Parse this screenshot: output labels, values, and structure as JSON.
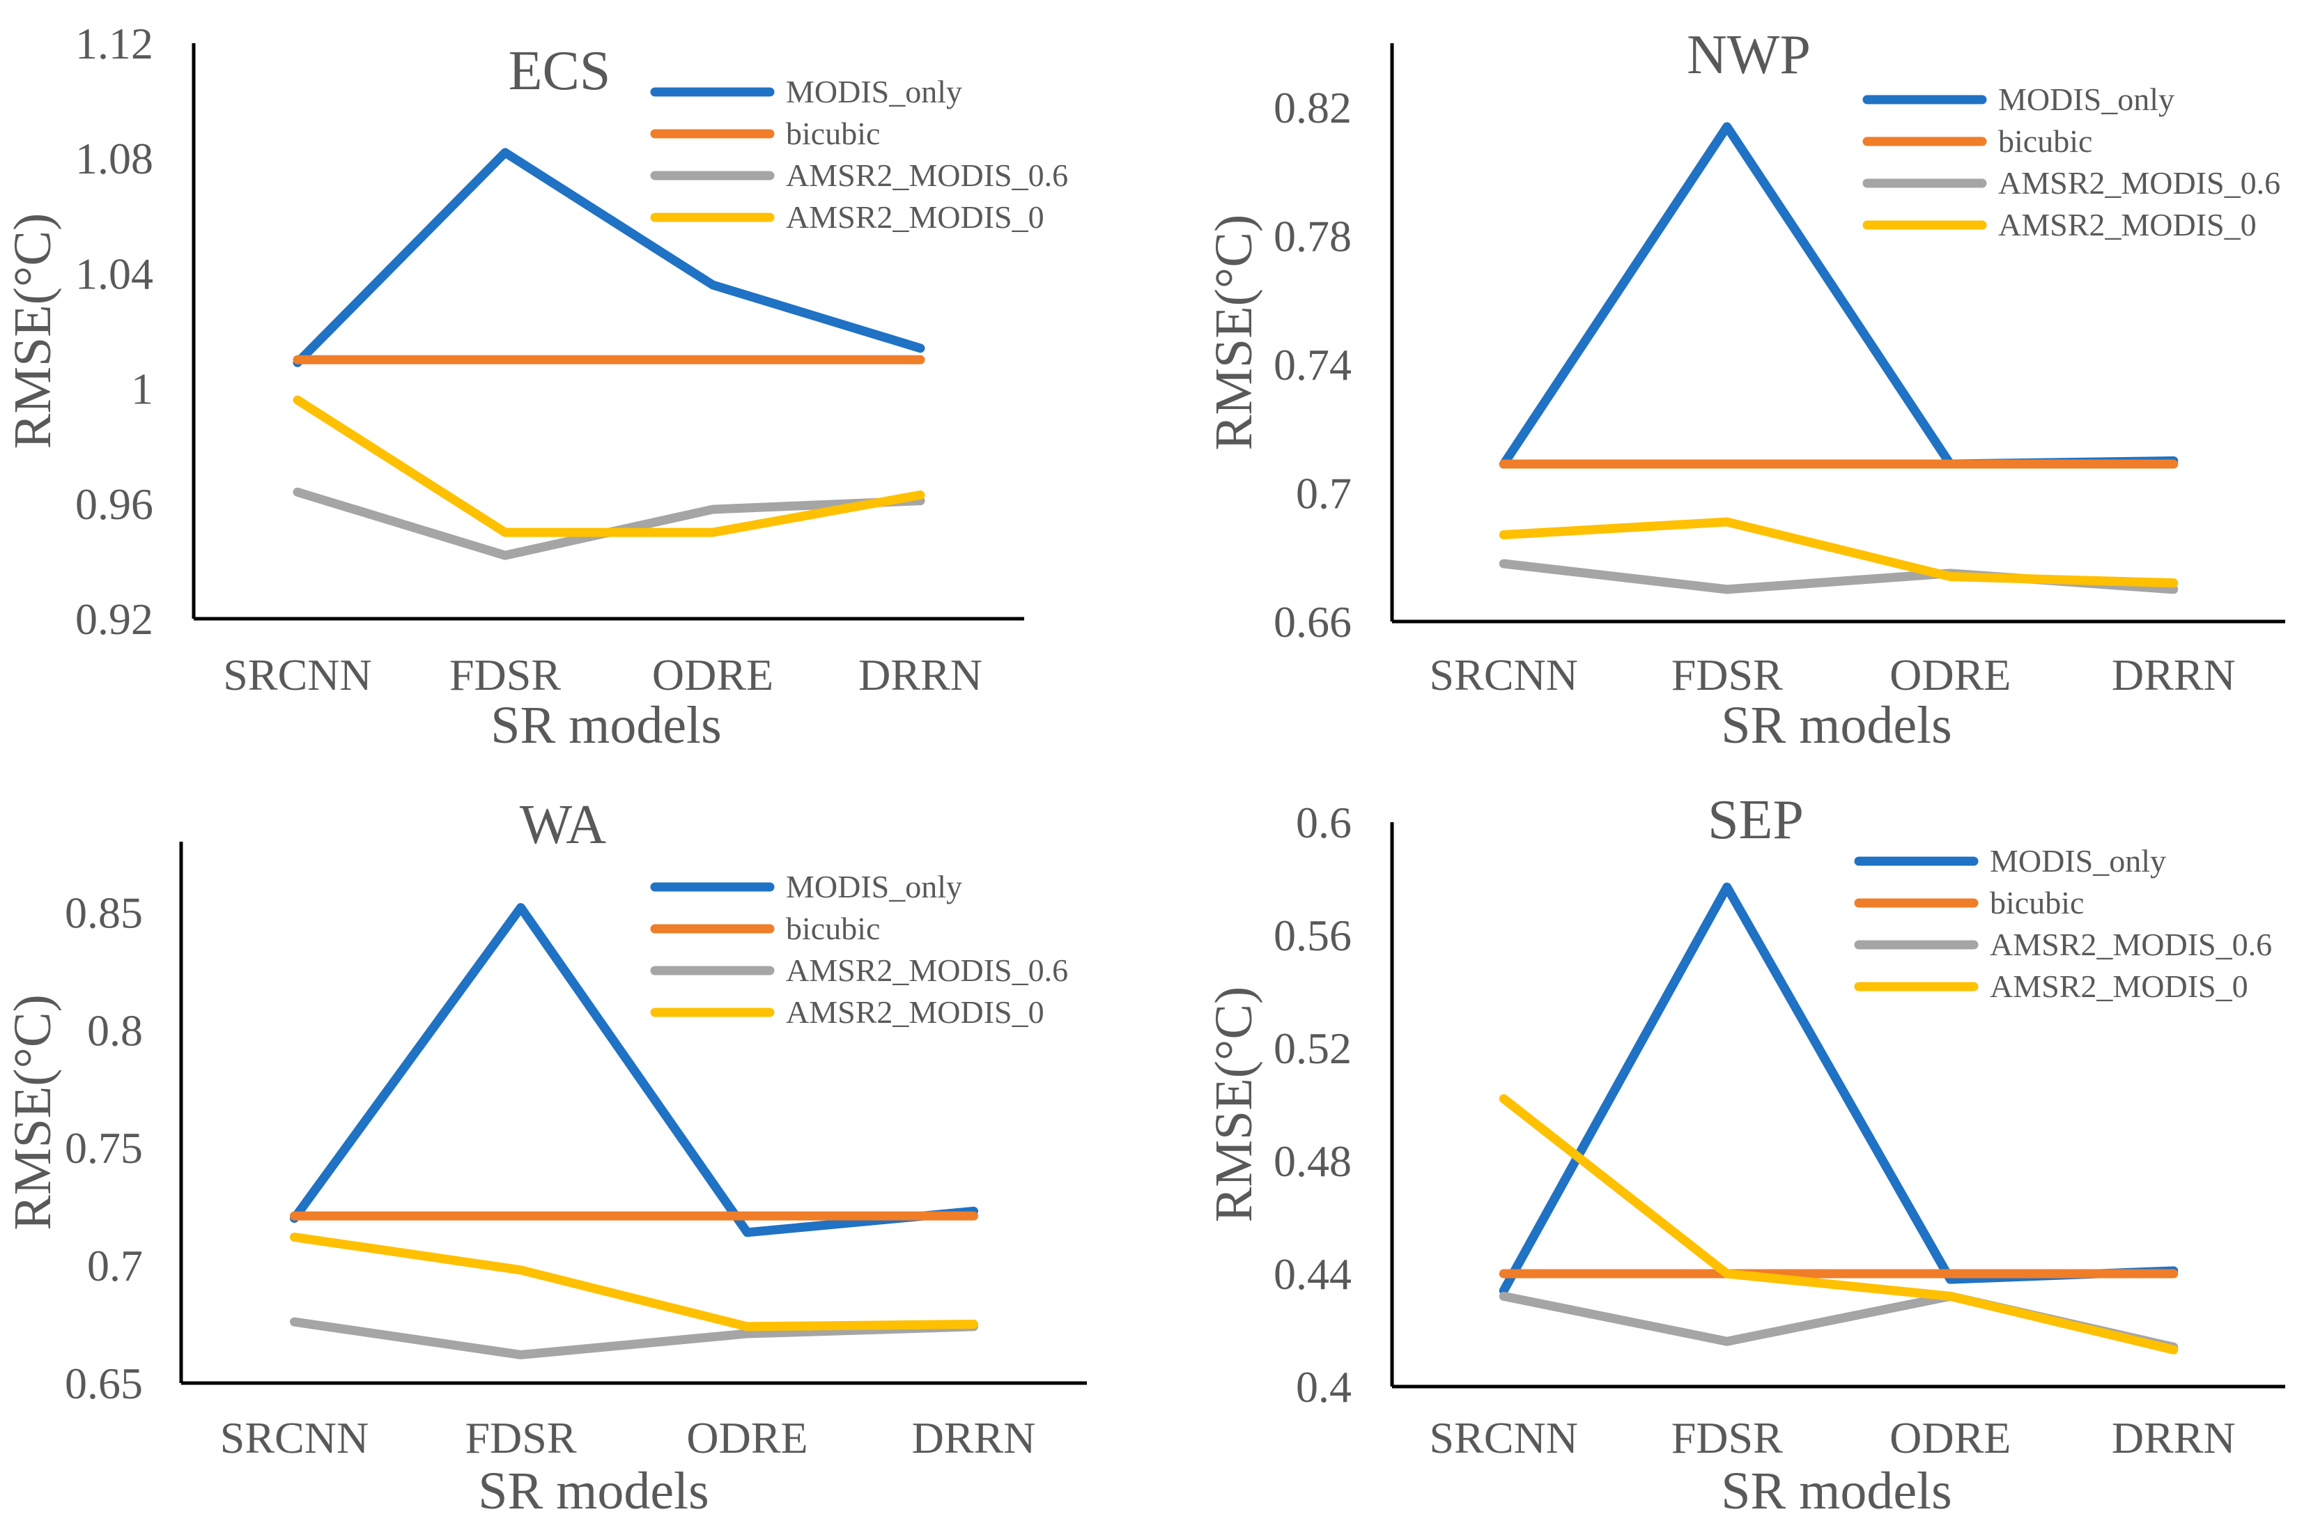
{
  "chart_data": [
    {
      "type": "line",
      "title": "ECS",
      "xlabel": "SR models",
      "ylabel": "RMSE(°C)",
      "categories": [
        "SRCNN",
        "FDSR",
        "ODRE",
        "DRRN"
      ],
      "ylim": [
        0.92,
        1.12
      ],
      "yticks": [
        0.92,
        0.96,
        1,
        1.04,
        1.08,
        1.12
      ],
      "ytick_labels": [
        "0.92",
        "0.96",
        "1",
        "1.04",
        "1.08",
        "1.12"
      ],
      "legend_position": "top-right",
      "series": [
        {
          "name": "MODIS_only",
          "color": "#1f72c4",
          "values": [
            1.009,
            1.082,
            1.036,
            1.014
          ]
        },
        {
          "name": "bicubic",
          "color": "#f07d28",
          "values": [
            1.01,
            1.01,
            1.01,
            1.01
          ]
        },
        {
          "name": "AMSR2_MODIS_0.6",
          "color": "#a5a5a5",
          "values": [
            0.964,
            0.942,
            0.958,
            0.961
          ]
        },
        {
          "name": "AMSR2_MODIS_0",
          "color": "#ffc000",
          "values": [
            0.996,
            0.95,
            0.95,
            0.963
          ]
        }
      ]
    },
    {
      "type": "line",
      "title": "NWP",
      "xlabel": "SR models",
      "ylabel": "RMSE(°C)",
      "categories": [
        "SRCNN",
        "FDSR",
        "ODRE",
        "DRRN"
      ],
      "ylim": [
        0.66,
        0.84
      ],
      "yticks": [
        0.66,
        0.7,
        0.74,
        0.78,
        0.82
      ],
      "ytick_labels": [
        "0.66",
        "0.7",
        "0.74",
        "0.78",
        "0.82"
      ],
      "legend_position": "top-right",
      "series": [
        {
          "name": "MODIS_only",
          "color": "#1f72c4",
          "values": [
            0.709,
            0.814,
            0.709,
            0.71
          ]
        },
        {
          "name": "bicubic",
          "color": "#f07d28",
          "values": [
            0.709,
            0.709,
            0.709,
            0.709
          ]
        },
        {
          "name": "AMSR2_MODIS_0.6",
          "color": "#a5a5a5",
          "values": [
            0.678,
            0.67,
            0.675,
            0.67
          ]
        },
        {
          "name": "AMSR2_MODIS_0",
          "color": "#ffc000",
          "values": [
            0.687,
            0.691,
            0.674,
            0.672
          ]
        }
      ]
    },
    {
      "type": "line",
      "title": "WA",
      "xlabel": "SR models",
      "ylabel": "RMSE(°C)",
      "categories": [
        "SRCNN",
        "FDSR",
        "ODRE",
        "DRRN"
      ],
      "ylim": [
        0.65,
        0.88
      ],
      "yticks": [
        0.65,
        0.7,
        0.75,
        0.8,
        0.85
      ],
      "ytick_labels": [
        "0.65",
        "0.7",
        "0.75",
        "0.8",
        "0.85"
      ],
      "legend_position": "top-right",
      "series": [
        {
          "name": "MODIS_only",
          "color": "#1f72c4",
          "values": [
            0.72,
            0.852,
            0.714,
            0.723
          ]
        },
        {
          "name": "bicubic",
          "color": "#f07d28",
          "values": [
            0.721,
            0.721,
            0.721,
            0.721
          ]
        },
        {
          "name": "AMSR2_MODIS_0.6",
          "color": "#a5a5a5",
          "values": [
            0.676,
            0.662,
            0.671,
            0.674
          ]
        },
        {
          "name": "AMSR2_MODIS_0",
          "color": "#ffc000",
          "values": [
            0.712,
            0.698,
            0.674,
            0.675
          ]
        }
      ]
    },
    {
      "type": "line",
      "title": "SEP",
      "xlabel": "SR models",
      "ylabel": "RMSE(°C)",
      "categories": [
        "SRCNN",
        "FDSR",
        "ODRE",
        "DRRN"
      ],
      "ylim": [
        0.4,
        0.6
      ],
      "yticks": [
        0.4,
        0.44,
        0.48,
        0.52,
        0.56,
        0.6
      ],
      "ytick_labels": [
        "0.4",
        "0.44",
        "0.48",
        "0.52",
        "0.56",
        "0.6"
      ],
      "legend_position": "top-right",
      "series": [
        {
          "name": "MODIS_only",
          "color": "#1f72c4",
          "values": [
            0.434,
            0.577,
            0.438,
            0.441
          ]
        },
        {
          "name": "bicubic",
          "color": "#f07d28",
          "values": [
            0.44,
            0.44,
            0.44,
            0.44
          ]
        },
        {
          "name": "AMSR2_MODIS_0.6",
          "color": "#a5a5a5",
          "values": [
            0.432,
            0.416,
            0.432,
            0.414
          ]
        },
        {
          "name": "AMSR2_MODIS_0",
          "color": "#ffc000",
          "values": [
            0.502,
            0.44,
            0.432,
            0.413
          ]
        }
      ]
    }
  ]
}
